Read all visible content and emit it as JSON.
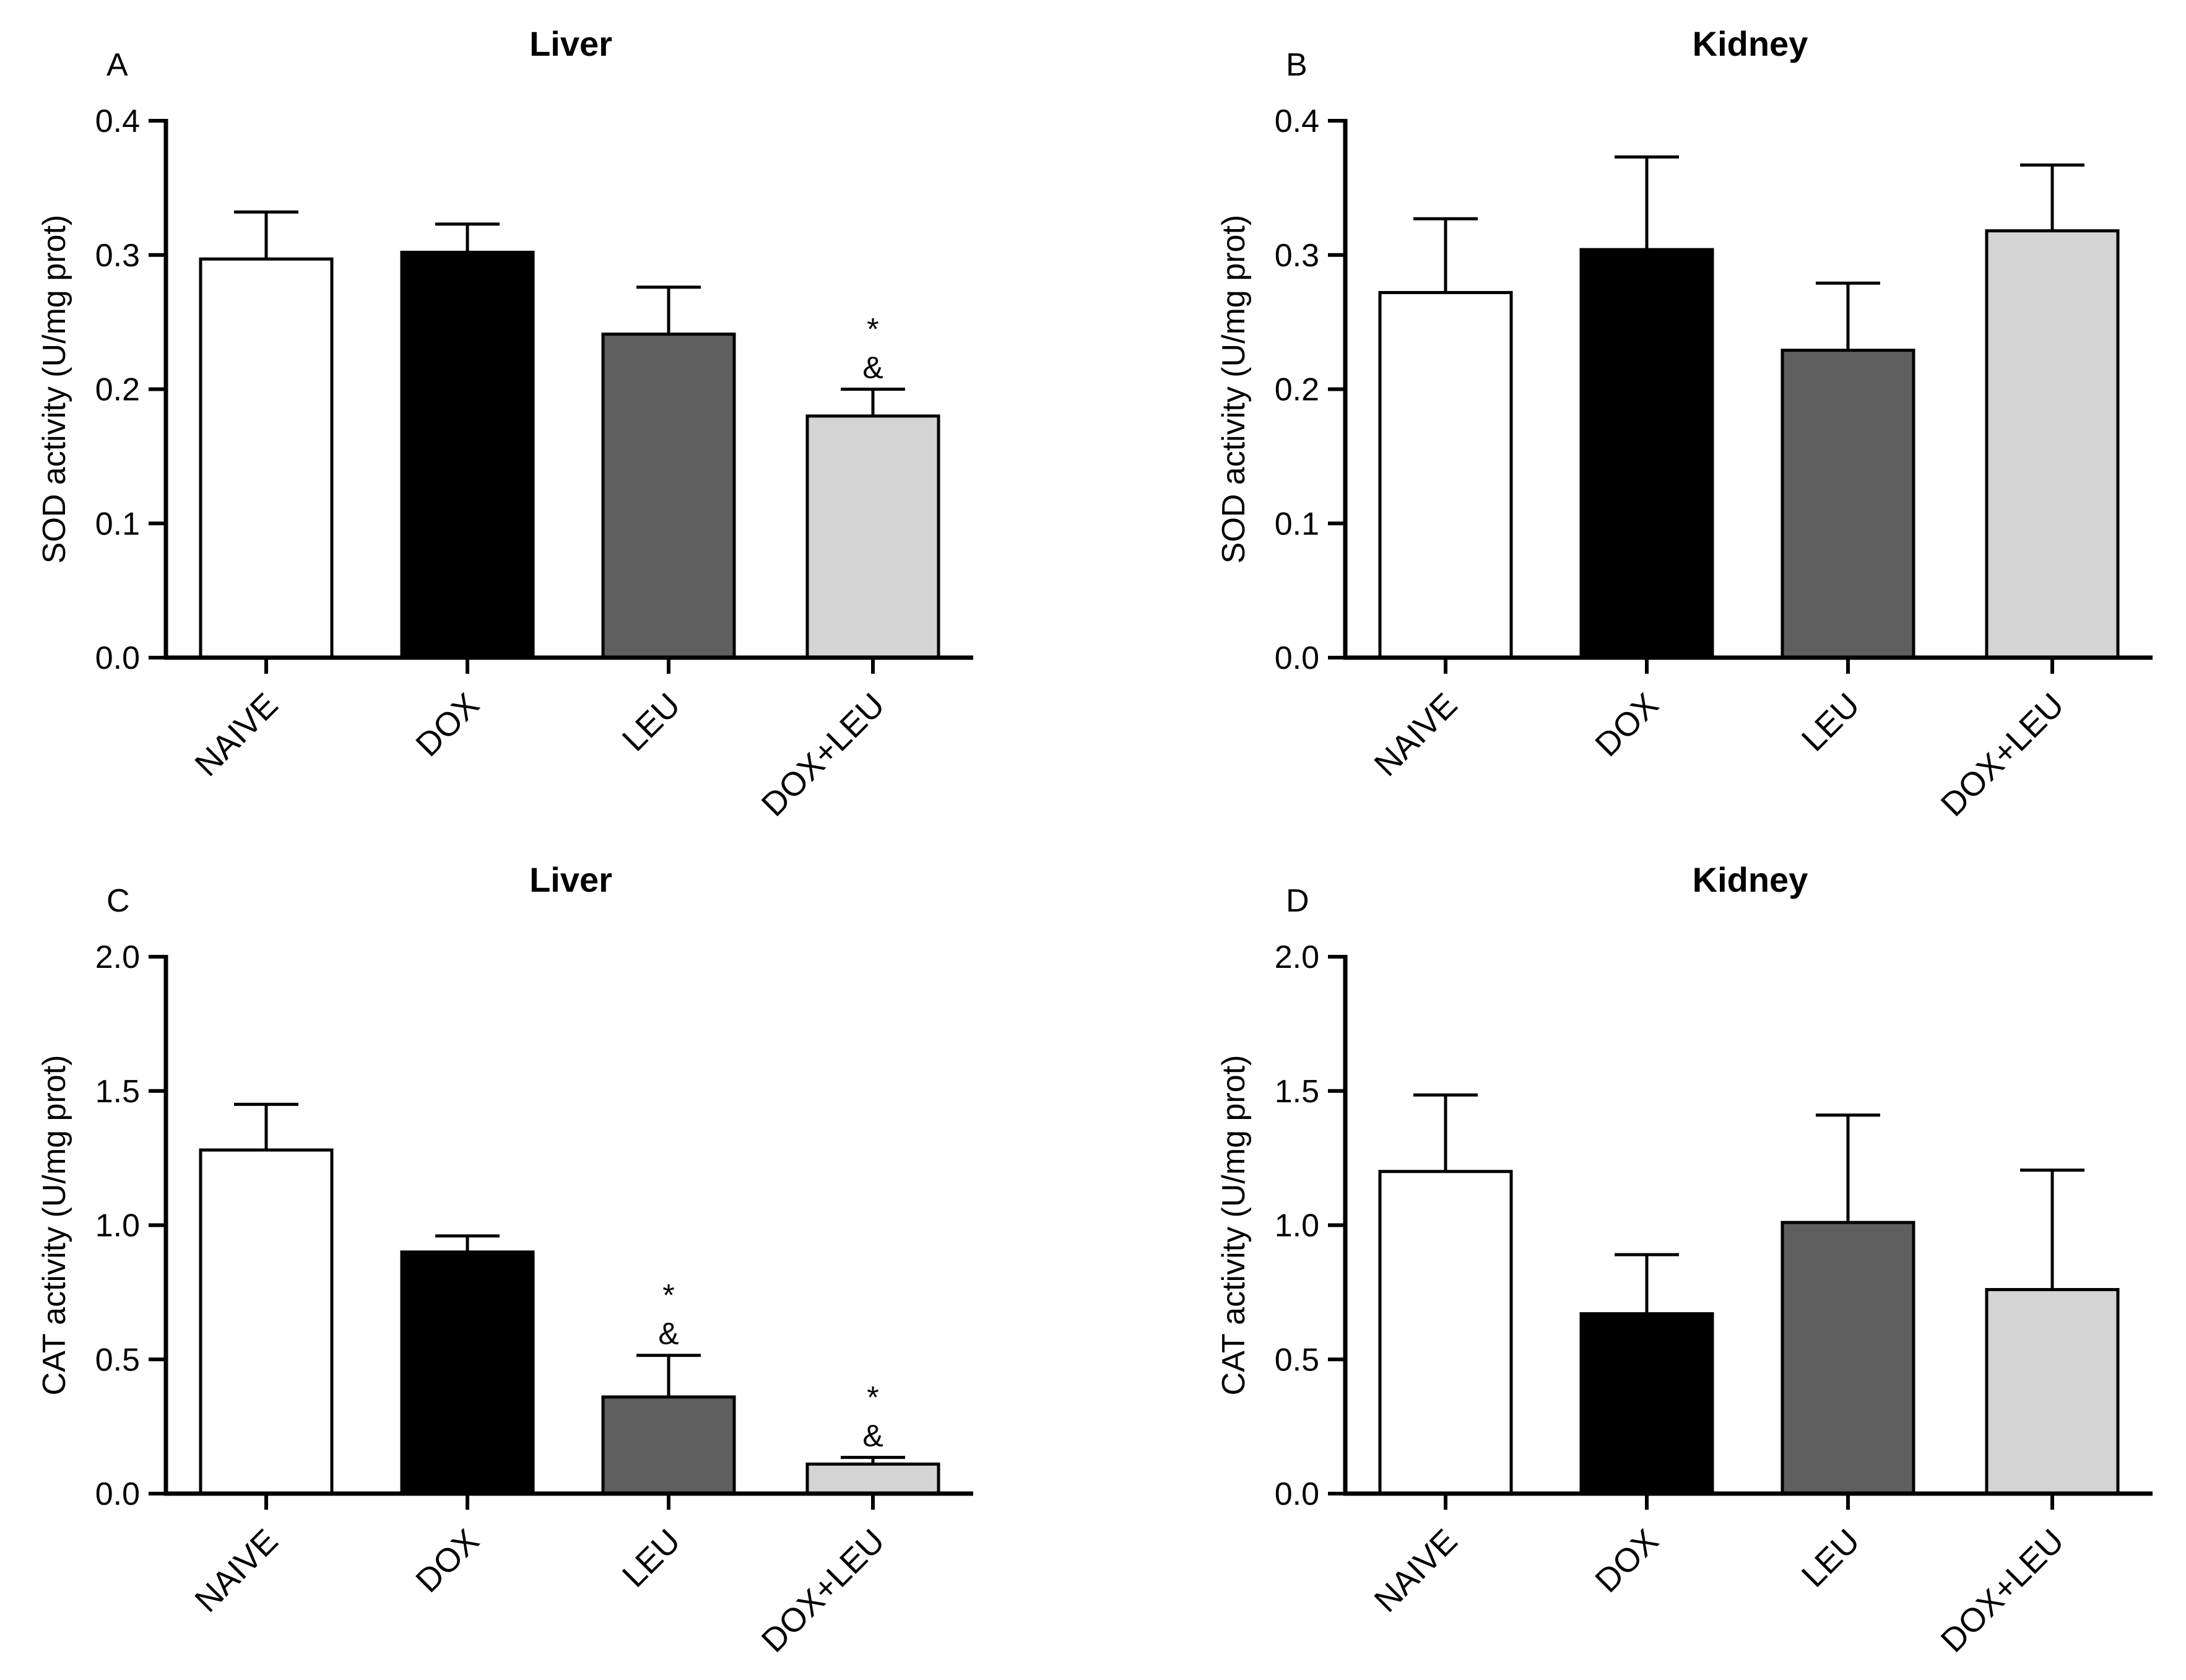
{
  "figure": {
    "colors": {
      "NAIVE": "#ffffff",
      "DOX": "#000000",
      "LEU": "#5f5f5f",
      "DOX+LEU": "#d4d4d4",
      "axis": "#000000"
    }
  },
  "chart_data": [
    {
      "panel": "A",
      "type": "bar",
      "title": "Liver",
      "xlabel": "",
      "ylabel": "SOD activity (U/mg prot)",
      "categories": [
        "NAIVE",
        "DOX",
        "LEU",
        "DOX+LEU"
      ],
      "values": [
        0.297,
        0.302,
        0.241,
        0.18
      ],
      "errors": [
        0.035,
        0.021,
        0.035,
        0.02
      ],
      "annotations": [
        [],
        [],
        [],
        [
          "*",
          "&"
        ]
      ],
      "ylim": [
        0,
        0.4
      ],
      "yticks": [
        "0.0",
        "0.1",
        "0.2",
        "0.3",
        "0.4"
      ],
      "yticks_values": [
        0,
        0.1,
        0.2,
        0.3,
        0.4
      ]
    },
    {
      "panel": "B",
      "type": "bar",
      "title": "Kidney",
      "xlabel": "",
      "ylabel": "SOD activity (U/mg prot)",
      "categories": [
        "NAIVE",
        "DOX",
        "LEU",
        "DOX+LEU"
      ],
      "values": [
        0.272,
        0.304,
        0.229,
        0.318
      ],
      "errors": [
        0.055,
        0.069,
        0.05,
        0.049
      ],
      "annotations": [
        [],
        [],
        [],
        []
      ],
      "ylim": [
        0,
        0.4
      ],
      "yticks": [
        "0.0",
        "0.1",
        "0.2",
        "0.3",
        "0.4"
      ],
      "yticks_values": [
        0,
        0.1,
        0.2,
        0.3,
        0.4
      ]
    },
    {
      "panel": "C",
      "type": "bar",
      "title": "Liver",
      "xlabel": "",
      "ylabel": "CAT activity (U/mg prot)",
      "categories": [
        "NAIVE",
        "DOX",
        "LEU",
        "DOX+LEU"
      ],
      "values": [
        1.28,
        0.9,
        0.36,
        0.11
      ],
      "errors": [
        0.17,
        0.06,
        0.155,
        0.025
      ],
      "annotations": [
        [],
        [],
        [
          "*",
          "&"
        ],
        [
          "*",
          "&"
        ]
      ],
      "ylim": [
        0,
        2.0
      ],
      "yticks": [
        "0.0",
        "0.5",
        "1.0",
        "1.5",
        "2.0"
      ],
      "yticks_values": [
        0,
        0.5,
        1.0,
        1.5,
        2.0
      ]
    },
    {
      "panel": "D",
      "type": "bar",
      "title": "Kidney",
      "xlabel": "",
      "ylabel": "CAT activity (U/mg prot)",
      "categories": [
        "NAIVE",
        "DOX",
        "LEU",
        "DOX+LEU"
      ],
      "values": [
        1.2,
        0.67,
        1.01,
        0.76
      ],
      "errors": [
        0.285,
        0.22,
        0.4,
        0.445
      ],
      "annotations": [
        [],
        [],
        [],
        []
      ],
      "ylim": [
        0,
        2.0
      ],
      "yticks": [
        "0.0",
        "0.5",
        "1.0",
        "1.5",
        "2.0"
      ],
      "yticks_values": [
        0,
        0.5,
        1.0,
        1.5,
        2.0
      ]
    }
  ]
}
